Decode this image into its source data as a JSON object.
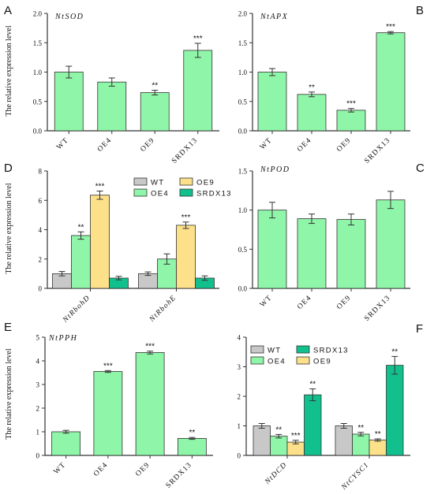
{
  "colors": {
    "wt": "#c8c8c8",
    "oe4": "#8ff5a8",
    "oe9": "#fde08a",
    "srdx13": "#12c08e",
    "axis": "#333333",
    "text": "#111111"
  },
  "chart_data": [
    {
      "id": "A",
      "panel_letter": "A",
      "type": "bar",
      "title": "NtSOD",
      "ylabel": "The relative expression level",
      "categories": [
        "WT",
        "OE4",
        "OE9",
        "SRDX13"
      ],
      "values": [
        1.0,
        0.83,
        0.65,
        1.37
      ],
      "errors": [
        0.1,
        0.07,
        0.04,
        0.12
      ],
      "significance": [
        "",
        "",
        "**",
        "***"
      ],
      "ylim": [
        0,
        2.0
      ],
      "yticks": [
        "0.0",
        "0.5",
        "1.0",
        "1.5",
        "2.0"
      ],
      "grid": false
    },
    {
      "id": "B",
      "panel_letter": "B",
      "type": "bar",
      "title": "NtAPX",
      "ylabel": "",
      "categories": [
        "WT",
        "OE4",
        "OE9",
        "SRDX13"
      ],
      "values": [
        1.0,
        0.62,
        0.35,
        1.67
      ],
      "errors": [
        0.06,
        0.04,
        0.03,
        0.02
      ],
      "significance": [
        "",
        "**",
        "***",
        "***"
      ],
      "ylim": [
        0,
        2.0
      ],
      "yticks": [
        "0.0",
        "0.5",
        "1.0",
        "1.5",
        "2.0"
      ],
      "grid": false
    },
    {
      "id": "C",
      "panel_letter": "C",
      "type": "bar",
      "title": "NtPOD",
      "ylabel": "",
      "categories": [
        "WT",
        "OE4",
        "OE9",
        "SRDX13"
      ],
      "values": [
        1.0,
        0.89,
        0.88,
        1.13
      ],
      "errors": [
        0.1,
        0.06,
        0.07,
        0.11
      ],
      "significance": [
        "",
        "",
        "",
        ""
      ],
      "ylim": [
        0,
        1.5
      ],
      "yticks": [
        "0.0",
        "0.5",
        "1.0",
        "1.5"
      ],
      "grid": false
    },
    {
      "id": "D",
      "panel_letter": "D",
      "type": "bar",
      "title": "",
      "ylabel": "The relative expression level",
      "categories": [
        "NtRbohD",
        "NtRbohE"
      ],
      "series": [
        {
          "name": "WT",
          "key": "wt",
          "values": [
            1.0,
            1.0
          ],
          "errors": [
            0.15,
            0.12
          ],
          "significance": [
            "",
            ""
          ]
        },
        {
          "name": "OE4",
          "key": "oe4",
          "values": [
            3.6,
            2.0
          ],
          "errors": [
            0.25,
            0.35
          ],
          "significance": [
            "**",
            ""
          ]
        },
        {
          "name": "OE9",
          "key": "oe9",
          "values": [
            6.35,
            4.3
          ],
          "errors": [
            0.28,
            0.22
          ],
          "significance": [
            "***",
            "***"
          ]
        },
        {
          "name": "SRDX13",
          "key": "srdx13",
          "values": [
            0.7,
            0.7
          ],
          "errors": [
            0.12,
            0.15
          ],
          "significance": [
            "",
            ""
          ]
        }
      ],
      "legend": [
        "WT",
        "OE9",
        "OE4",
        "SRDX13"
      ],
      "legend_position": "top-right",
      "ylim": [
        0,
        8
      ],
      "yticks": [
        "0",
        "2",
        "4",
        "6",
        "8"
      ],
      "grid": false
    },
    {
      "id": "E",
      "panel_letter": "E",
      "type": "bar",
      "title": "NtPPH",
      "ylabel": "The relative expression level",
      "categories": [
        "WT",
        "OE4",
        "OE9",
        "SRDX13"
      ],
      "values": [
        1.0,
        3.55,
        4.35,
        0.72
      ],
      "errors": [
        0.06,
        0.04,
        0.06,
        0.04
      ],
      "significance": [
        "",
        "***",
        "***",
        "**"
      ],
      "ylim": [
        0,
        5
      ],
      "yticks": [
        "0",
        "1",
        "2",
        "3",
        "4",
        "5"
      ],
      "grid": false
    },
    {
      "id": "F",
      "panel_letter": "F",
      "type": "bar",
      "title": "",
      "ylabel": "",
      "categories": [
        "NtDCD",
        "NtCYSC1"
      ],
      "series": [
        {
          "name": "WT",
          "key": "wt",
          "values": [
            1.0,
            1.0
          ],
          "errors": [
            0.08,
            0.08
          ],
          "significance": [
            "",
            ""
          ]
        },
        {
          "name": "OE4",
          "key": "oe4",
          "values": [
            0.65,
            0.72
          ],
          "errors": [
            0.06,
            0.06
          ],
          "significance": [
            "**",
            "**"
          ]
        },
        {
          "name": "OE9",
          "key": "oe9",
          "values": [
            0.45,
            0.52
          ],
          "errors": [
            0.06,
            0.04
          ],
          "significance": [
            "***",
            "**"
          ]
        },
        {
          "name": "SRDX13",
          "key": "srdx13",
          "values": [
            2.05,
            3.05
          ],
          "errors": [
            0.2,
            0.3
          ],
          "significance": [
            "**",
            "**"
          ]
        }
      ],
      "legend": [
        "WT",
        "SRDX13",
        "OE4",
        "OE9"
      ],
      "legend_position": "top-left",
      "ylim": [
        0,
        4
      ],
      "yticks": [
        "0",
        "1",
        "2",
        "3",
        "4"
      ],
      "grid": false
    }
  ]
}
